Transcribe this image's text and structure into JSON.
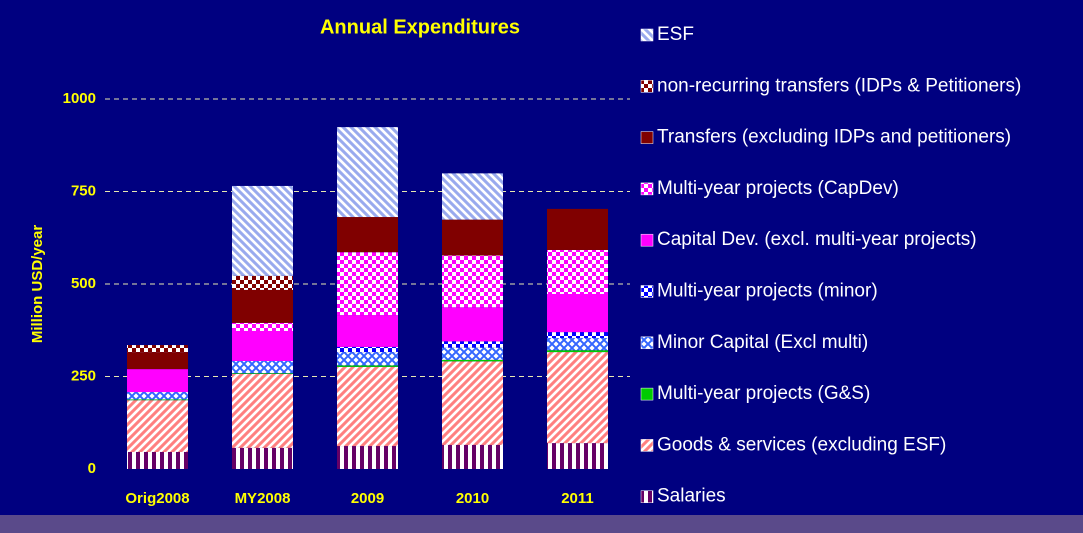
{
  "chart_data": {
    "type": "stacked_bar",
    "title": "Annual Expenditures",
    "y_label": "Million USD/year",
    "categories": [
      "Orig2008",
      "MY2008",
      "2009",
      "2010",
      "2011"
    ],
    "ylim": [
      0,
      1000
    ],
    "yticks": [
      0,
      250,
      500,
      750,
      1000
    ],
    "grid": true,
    "legend": "right",
    "series": [
      {
        "name": "Salaries",
        "color": "#660066",
        "pattern": "vertical",
        "values": [
          46,
          57,
          62,
          65,
          70
        ]
      },
      {
        "name": "Goods & services (excluding ESF)",
        "color": "#ff8080",
        "pattern": "diagonal",
        "values": [
          140,
          200,
          214,
          226,
          246
        ]
      },
      {
        "name": "Multi-year projects (G&S)",
        "color": "#00cc00",
        "pattern": "solid",
        "values": [
          2,
          2,
          4,
          4,
          5
        ]
      },
      {
        "name": "Minor Capital (Excl multi)",
        "color": "#3366ff",
        "pattern": "cross",
        "values": [
          20,
          33,
          36,
          33,
          33
        ]
      },
      {
        "name": "Multi-year projects (minor)",
        "color": "#0000ff",
        "pattern": "checker",
        "values": [
          0,
          0,
          14,
          17,
          16
        ]
      },
      {
        "name": "Capital Dev. (excl. multi-year projects)",
        "color": "#ff00ff",
        "pattern": "solid",
        "values": [
          62,
          81,
          86,
          92,
          103
        ]
      },
      {
        "name": "Multi-year projects (CapDev)",
        "color": "#ff00ff",
        "pattern": "checker",
        "values": [
          0,
          22,
          170,
          140,
          119
        ]
      },
      {
        "name": "Transfers (excluding IDPs and petitioners)",
        "color": "#800000",
        "pattern": "solid",
        "values": [
          46,
          89,
          95,
          97,
          111
        ]
      },
      {
        "name": "non-recurring transfers (IDPs & Petitioners)",
        "color": "#800000",
        "pattern": "checker",
        "values": [
          19,
          38,
          0,
          0,
          0
        ]
      },
      {
        "name": "ESF",
        "color": "#99aaee",
        "pattern": "diagonal-r",
        "values": [
          0,
          243,
          243,
          125,
          0
        ]
      }
    ]
  }
}
